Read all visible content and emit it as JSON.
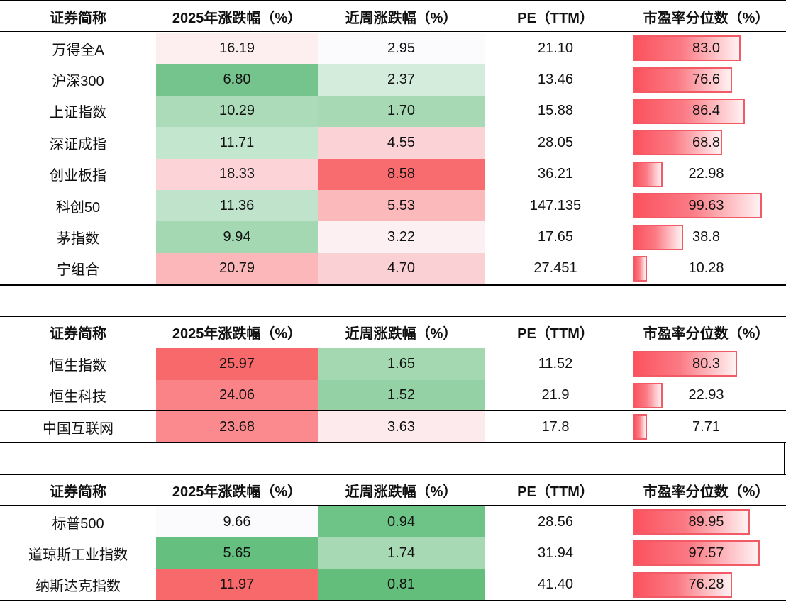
{
  "headers": [
    "证券简称",
    "2025年涨跌幅（%）",
    "近周涨跌幅（%）",
    "PE（TTM）",
    "市盈率分位数（%）"
  ],
  "colors": {
    "strong_red": "#f8696b",
    "red": "#fa8a8d",
    "light_red": "#fbb5b8",
    "pale_red": "#fcd4d8",
    "faint_red": "#fdeaec",
    "neutral": "#fbfafd",
    "faint_green": "#d4ecdc",
    "light_green": "#bfe4cb",
    "green": "#a6d9b4",
    "mid_green": "#94d2a5",
    "strong_green": "#6dc386",
    "bar_red": "#fb525e"
  },
  "sections": [
    {
      "rows": [
        {
          "name": "万得全A",
          "ytd": "16.19",
          "week": "2.95",
          "pe": "21.10",
          "pct": "83.0",
          "pct_value": 83.0,
          "ytd_color": "#fdeef0",
          "week_color": "#fbfafd"
        },
        {
          "name": "沪深300",
          "ytd": "6.80",
          "week": "2.37",
          "pe": "13.46",
          "pct": "76.6",
          "pct_value": 76.6,
          "ytd_color": "#76c48d",
          "week_color": "#d4ecdc"
        },
        {
          "name": "上证指数",
          "ytd": "10.29",
          "week": "1.70",
          "pe": "15.88",
          "pct": "86.4",
          "pct_value": 86.4,
          "ytd_color": "#abdbb8",
          "week_color": "#a6d9b4"
        },
        {
          "name": "深证成指",
          "ytd": "11.71",
          "week": "4.55",
          "pe": "28.05",
          "pct": "68.8",
          "pct_value": 68.8,
          "ytd_color": "#c3e6cf",
          "week_color": "#fbd3d6"
        },
        {
          "name": "创业板指",
          "ytd": "18.33",
          "week": "8.58",
          "pe": "36.21",
          "pct": "22.98",
          "pct_value": 22.98,
          "ytd_color": "#fcd4d8",
          "week_color": "#f86c70"
        },
        {
          "name": "科创50",
          "ytd": "11.36",
          "week": "5.53",
          "pe": "147.135",
          "pct": "99.63",
          "pct_value": 99.63,
          "ytd_color": "#bfe4cb",
          "week_color": "#fbb9bc"
        },
        {
          "name": "茅指数",
          "ytd": "9.94",
          "week": "3.22",
          "pe": "17.65",
          "pct": "38.8",
          "pct_value": 38.8,
          "ytd_color": "#a4d8b2",
          "week_color": "#fcf0f3"
        },
        {
          "name": "宁组合",
          "ytd": "20.79",
          "week": "4.70",
          "pe": "27.451",
          "pct": "10.28",
          "pct_value": 10.28,
          "ytd_color": "#fbb7ba",
          "week_color": "#fbd0d4"
        }
      ]
    },
    {
      "rows": [
        {
          "name": "恒生指数",
          "ytd": "25.97",
          "week": "1.65",
          "pe": "11.52",
          "pct": "80.3",
          "pct_value": 80.3,
          "ytd_color": "#f8696b",
          "week_color": "#a3d8b1"
        },
        {
          "name": "恒生科技",
          "ytd": "24.06",
          "week": "1.52",
          "pe": "21.9",
          "pct": "22.93",
          "pct_value": 22.93,
          "ytd_color": "#f98387",
          "week_color": "#94d2a5"
        },
        {
          "name": "中国互联网",
          "ytd": "23.68",
          "week": "3.63",
          "pe": "17.8",
          "pct": "7.71",
          "pct_value": 7.71,
          "ytd_color": "#fa8a8d",
          "week_color": "#fdeaec"
        }
      ]
    },
    {
      "rows": [
        {
          "name": "标普500",
          "ytd": "9.66",
          "week": "0.94",
          "pe": "28.56",
          "pct": "89.95",
          "pct_value": 89.95,
          "ytd_color": "#fbfafd",
          "week_color": "#6ec487"
        },
        {
          "name": "道琼斯工业指数",
          "ytd": "5.65",
          "week": "1.74",
          "pe": "31.94",
          "pct": "97.57",
          "pct_value": 97.57,
          "ytd_color": "#65c07f",
          "week_color": "#a7d9b4"
        },
        {
          "name": "纳斯达克指数",
          "ytd": "11.97",
          "week": "0.81",
          "pe": "41.40",
          "pct": "76.28",
          "pct_value": 76.28,
          "ytd_color": "#f8696b",
          "week_color": "#63be7b"
        }
      ]
    }
  ]
}
